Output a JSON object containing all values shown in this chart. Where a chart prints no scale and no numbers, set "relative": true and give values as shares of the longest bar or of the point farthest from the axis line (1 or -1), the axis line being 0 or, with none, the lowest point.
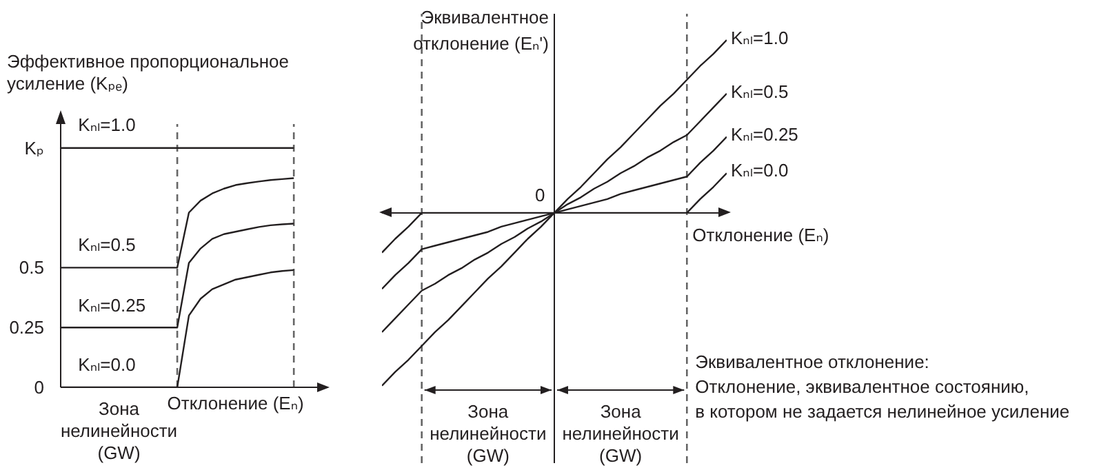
{
  "chart_data": [
    {
      "type": "line",
      "ylabel": "Эффективное пропорциональное усиление (Kₚₑ)",
      "xlabel": "Отклонение (Eₙ)",
      "annotations": [
        "Зона нелинейности (GW)"
      ],
      "categories": [
        null,
        null,
        null,
        null,
        null,
        null,
        null,
        null,
        null,
        null,
        null,
        null,
        null,
        null,
        null,
        null,
        null,
        null,
        null,
        null,
        null,
        null,
        null
      ],
      "ylim": [
        0,
        1.1
      ],
      "yticks": [
        0,
        0.25,
        0.5,
        {
          "value": 1,
          "label": "Kₚ"
        }
      ],
      "tick_labels": "y",
      "marker": "none",
      "series": [
        {
          "name": "Kₙₗ=1.0",
          "color": "#231f20",
          "values": [
            1,
            1,
            1,
            1,
            1,
            1,
            1,
            1,
            1,
            1,
            1,
            1,
            1,
            1,
            1,
            1,
            1,
            1,
            1,
            1,
            1,
            null,
            null
          ]
        },
        {
          "name": "Kₙₗ=0.5",
          "color": "#231f20",
          "values": [
            0.5,
            0.5,
            0.5,
            0.5,
            0.5,
            0.5,
            0.5,
            0.5,
            0.5,
            0.5,
            0.5,
            0.73,
            0.78,
            0.81,
            0.83,
            0.845,
            0.853,
            0.86,
            0.866,
            0.87,
            0.874,
            null,
            null
          ]
        },
        {
          "name": "Kₙₗ=0.25",
          "color": "#231f20",
          "values": [
            0.25,
            0.25,
            0.25,
            0.25,
            0.25,
            0.25,
            0.25,
            0.25,
            0.25,
            0.25,
            0.25,
            0.52,
            0.58,
            0.62,
            0.64,
            0.65,
            0.66,
            0.67,
            0.677,
            0.681,
            0.684,
            null,
            null
          ]
        },
        {
          "name": "Kₙₗ=0.0",
          "color": "#231f20",
          "values": [
            0,
            0,
            0,
            0,
            0,
            0,
            0,
            0,
            0,
            0,
            0,
            0.3,
            0.37,
            0.41,
            0.43,
            0.45,
            0.46,
            0.47,
            0.48,
            0.486,
            0.49,
            null,
            null
          ]
        }
      ]
    },
    {
      "type": "line",
      "relative": true,
      "xlabel": "Отклонение (Eₙ)",
      "ylabel": "Эквивалентное отклонение (Eₙ')",
      "categories": [
        null,
        null,
        null,
        null,
        null,
        null,
        null,
        null,
        null,
        null,
        null,
        null,
        null,
        null,
        null,
        null,
        null,
        null,
        null,
        null,
        null,
        null,
        null,
        null,
        null,
        null,
        null
      ],
      "tick_labels": false,
      "marker": "none",
      "annotations": [
        "0",
        "Эквивалентное отклонение:\nОтклонение, эквивалентное состоянию,\nв котором не задается нелинейное усиление",
        "Зона нелинейности (GW)",
        "Зона нелинейности (GW)"
      ],
      "series": [
        {
          "name": "Kₙₗ=1.0",
          "color": "#231f20",
          "values": [
            -1,
            -0.92,
            -0.85,
            -0.77,
            -0.69,
            -0.62,
            -0.54,
            -0.46,
            -0.38,
            -0.31,
            -0.23,
            -0.15,
            -0.08,
            0,
            0.08,
            0.15,
            0.23,
            0.31,
            0.38,
            0.46,
            0.54,
            0.62,
            0.69,
            0.77,
            0.85,
            0.92,
            1
          ]
        },
        {
          "name": "Kₙₗ=0.5",
          "color": "#231f20",
          "values": [
            -0.69,
            -0.61,
            -0.53,
            -0.45,
            -0.41,
            -0.36,
            -0.32,
            -0.27,
            -0.23,
            -0.18,
            -0.14,
            -0.09,
            -0.05,
            0,
            0.05,
            0.09,
            0.14,
            0.18,
            0.23,
            0.27,
            0.32,
            0.36,
            0.41,
            0.45,
            0.53,
            0.61,
            0.69
          ]
        },
        {
          "name": "Kₙₗ=0.25",
          "color": "#231f20",
          "values": [
            -0.44,
            -0.36,
            -0.29,
            -0.21,
            -0.19,
            -0.17,
            -0.15,
            -0.13,
            -0.11,
            -0.08,
            -0.06,
            -0.04,
            -0.02,
            0,
            0.02,
            0.04,
            0.06,
            0.08,
            0.11,
            0.13,
            0.15,
            0.17,
            0.19,
            0.21,
            0.29,
            0.36,
            0.44
          ]
        },
        {
          "name": "Kₙₗ=0.0",
          "color": "#231f20",
          "values": [
            -0.23,
            -0.15,
            -0.08,
            0,
            0,
            0,
            0,
            0,
            0,
            0,
            0,
            0,
            0,
            0,
            0,
            0,
            0,
            0,
            0,
            0,
            0,
            0,
            0,
            0,
            0.08,
            0.15,
            0.23
          ]
        }
      ]
    }
  ]
}
